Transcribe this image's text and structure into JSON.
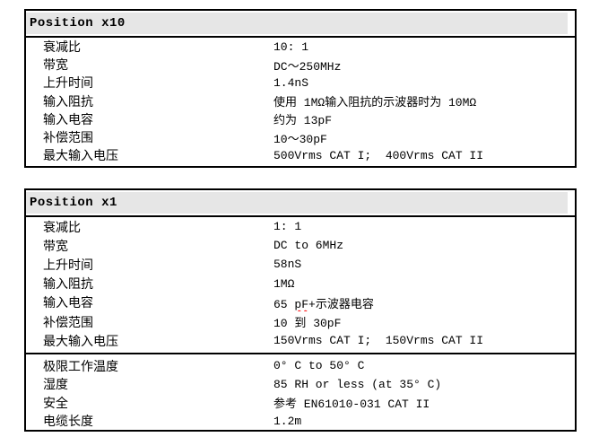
{
  "colors": {
    "header_bg": "#e6e6e6",
    "border": "#000000",
    "text": "#000000",
    "spellcheck_underline": "#ff0000",
    "page_bg": "#ffffff"
  },
  "tables": [
    {
      "header": "Position x10",
      "rows": [
        {
          "label": "衰减比",
          "value": "10: 1"
        },
        {
          "label": "带宽",
          "value": "DC～250MHz"
        },
        {
          "label": "上升时间",
          "value": "1.4nS"
        },
        {
          "label": "输入阻抗",
          "value": "使用 1MΩ输入阻抗的示波器时为 10MΩ"
        },
        {
          "label": "输入电容",
          "value": "约为 13pF"
        },
        {
          "label": "补偿范围",
          "value": "10～30pF"
        },
        {
          "label": "最大输入电压",
          "value": "500Vrms CAT I;  400Vrms CAT II"
        }
      ]
    },
    {
      "header": "Position x1",
      "rows": [
        {
          "label": "衰减比",
          "value": "1: 1"
        },
        {
          "label": "带宽",
          "value": "DC to 6MHz"
        },
        {
          "label": "上升时间",
          "value": "58nS"
        },
        {
          "label": "输入阻抗",
          "value": "1MΩ"
        },
        {
          "label": "输入电容",
          "value_pre": "65 ",
          "value_misspelled": "pF",
          "value_post": "+示波器电容"
        },
        {
          "label": "补偿范围",
          "value": "10 到 30pF"
        },
        {
          "label": "最大输入电压",
          "value": "150Vrms CAT I;  150Vrms CAT II"
        }
      ],
      "rows_general": [
        {
          "label": "极限工作温度",
          "value": "0° C to 50° C"
        },
        {
          "label": "湿度",
          "value": "85 RH or less (at 35° C)"
        },
        {
          "label": "安全",
          "value": "参考 EN61010-031 CAT II"
        },
        {
          "label": "电缆长度",
          "value": "1.2m"
        }
      ]
    }
  ]
}
